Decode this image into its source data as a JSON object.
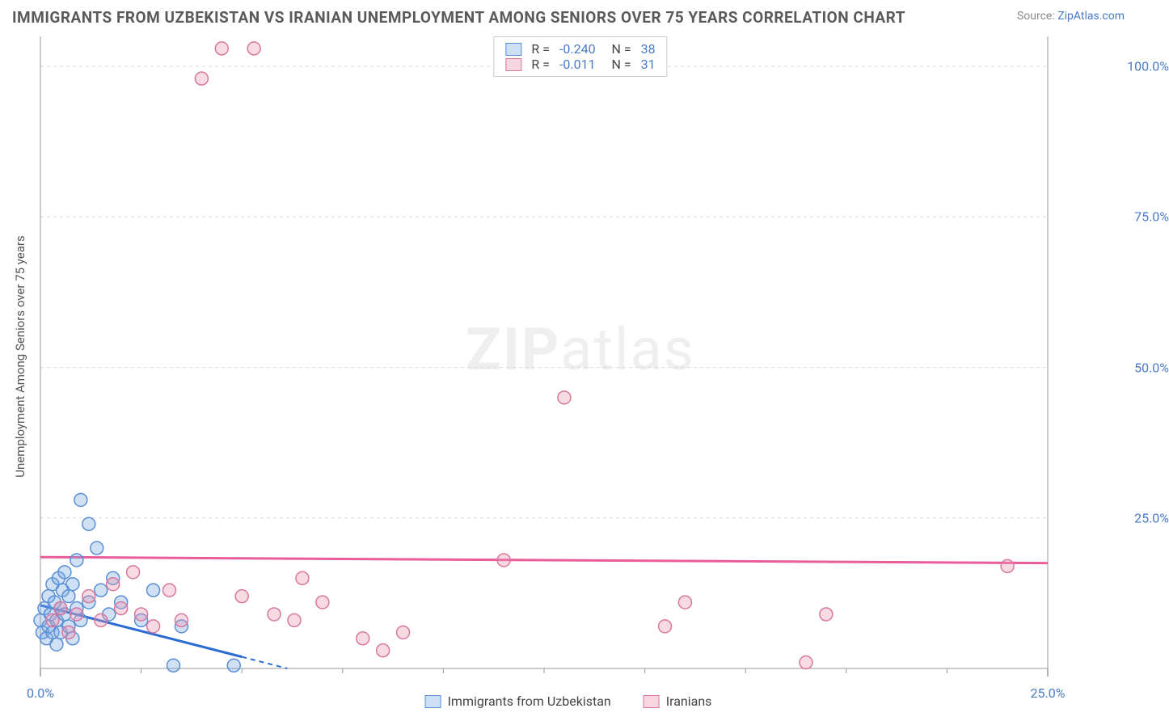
{
  "title": "IMMIGRANTS FROM UZBEKISTAN VS IRANIAN UNEMPLOYMENT AMONG SENIORS OVER 75 YEARS CORRELATION CHART",
  "source_label": "Source:",
  "source_link": "ZipAtlas.com",
  "watermark_bold": "ZIP",
  "watermark_thin": "atlas",
  "y_axis_label": "Unemployment Among Seniors over 75 years",
  "chart": {
    "type": "scatter",
    "xlim": [
      0,
      25
    ],
    "ylim": [
      0,
      105
    ],
    "x_ticks": [
      0,
      25
    ],
    "x_tick_labels": [
      "0.0%",
      "25.0%"
    ],
    "y_ticks": [
      25,
      50,
      75,
      100
    ],
    "y_tick_labels": [
      "25.0%",
      "50.0%",
      "75.0%",
      "100.0%"
    ],
    "minor_x_ticks": [
      2.5,
      5,
      7.5,
      10,
      12.5,
      15,
      17.5,
      20,
      22.5
    ],
    "grid_color": "#d8d8d8",
    "axis_color": "#999999",
    "background": "#ffffff",
    "series": [
      {
        "name": "Immigrants from Uzbekistan",
        "color_fill": "rgba(120,165,225,0.35)",
        "color_stroke": "#5a8fd6",
        "swatch_fill": "#cde0f5",
        "swatch_border": "#5a8fd6",
        "R": "-0.240",
        "N": "38",
        "regression": {
          "x1": 0,
          "y1": 10.5,
          "x2": 7.0,
          "y2": -1.5,
          "x_solid_end": 5.0,
          "color": "#2b6cd4"
        },
        "points": [
          [
            0.0,
            8
          ],
          [
            0.05,
            6
          ],
          [
            0.1,
            10
          ],
          [
            0.15,
            5
          ],
          [
            0.2,
            12
          ],
          [
            0.2,
            7
          ],
          [
            0.25,
            9
          ],
          [
            0.3,
            14
          ],
          [
            0.3,
            6
          ],
          [
            0.35,
            11
          ],
          [
            0.4,
            8
          ],
          [
            0.4,
            4
          ],
          [
            0.45,
            15
          ],
          [
            0.5,
            10
          ],
          [
            0.5,
            6
          ],
          [
            0.55,
            13
          ],
          [
            0.6,
            9
          ],
          [
            0.6,
            16
          ],
          [
            0.7,
            12
          ],
          [
            0.7,
            7
          ],
          [
            0.8,
            14
          ],
          [
            0.8,
            5
          ],
          [
            0.9,
            18
          ],
          [
            0.9,
            10
          ],
          [
            1.0,
            28
          ],
          [
            1.0,
            8
          ],
          [
            1.2,
            24
          ],
          [
            1.2,
            11
          ],
          [
            1.4,
            20
          ],
          [
            1.5,
            13
          ],
          [
            1.7,
            9
          ],
          [
            1.8,
            15
          ],
          [
            2.0,
            11
          ],
          [
            2.5,
            8
          ],
          [
            2.8,
            13
          ],
          [
            3.3,
            0.5
          ],
          [
            3.5,
            7
          ],
          [
            4.8,
            0.5
          ]
        ]
      },
      {
        "name": "Iranians",
        "color_fill": "rgba(235,150,175,0.35)",
        "color_stroke": "#d877a0",
        "swatch_fill": "#f7d6e0",
        "swatch_border": "#d877a0",
        "R": "-0.011",
        "N": "31",
        "regression": {
          "x1": 0,
          "y1": 18.5,
          "x2": 25,
          "y2": 17.5,
          "color": "#e85d9a"
        },
        "points": [
          [
            0.3,
            8
          ],
          [
            0.5,
            10
          ],
          [
            0.7,
            6
          ],
          [
            0.9,
            9
          ],
          [
            1.2,
            12
          ],
          [
            1.5,
            8
          ],
          [
            1.8,
            14
          ],
          [
            2.0,
            10
          ],
          [
            2.3,
            16
          ],
          [
            2.5,
            9
          ],
          [
            2.8,
            7
          ],
          [
            3.2,
            13
          ],
          [
            3.5,
            8
          ],
          [
            4.0,
            98
          ],
          [
            4.5,
            103
          ],
          [
            5.0,
            12
          ],
          [
            5.3,
            103
          ],
          [
            5.8,
            9
          ],
          [
            6.3,
            8
          ],
          [
            6.5,
            15
          ],
          [
            7.0,
            11
          ],
          [
            8.0,
            5
          ],
          [
            8.5,
            3
          ],
          [
            9.0,
            6
          ],
          [
            11.5,
            18
          ],
          [
            13.0,
            45
          ],
          [
            15.5,
            7
          ],
          [
            16.0,
            11
          ],
          [
            19.0,
            1
          ],
          [
            19.5,
            9
          ],
          [
            24.0,
            17
          ]
        ]
      }
    ]
  },
  "legend_bottom": [
    {
      "label": "Immigrants from Uzbekistan",
      "fill": "#cde0f5",
      "border": "#5a8fd6"
    },
    {
      "label": "Iranians",
      "fill": "#f7d6e0",
      "border": "#d877a0"
    }
  ]
}
